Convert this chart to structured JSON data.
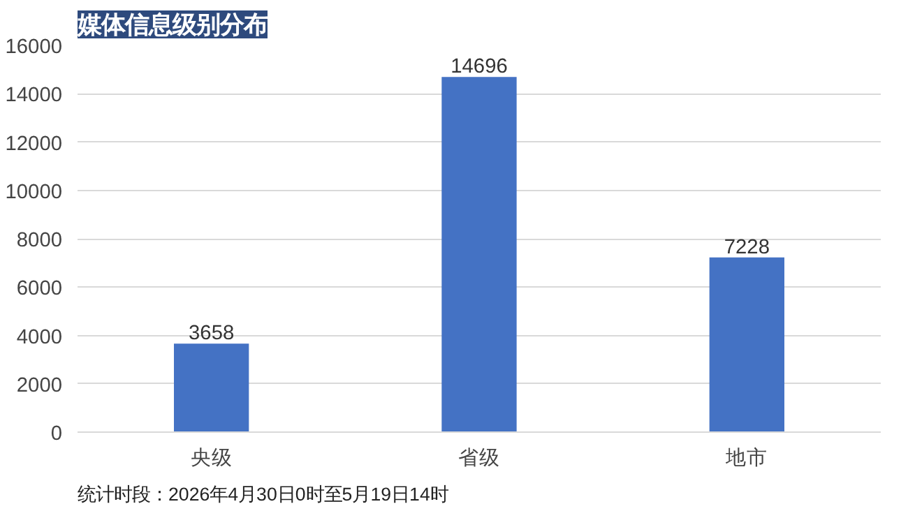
{
  "chart_data": {
    "type": "bar",
    "title": "媒体信息级别分布",
    "categories": [
      "央级",
      "省级",
      "地市"
    ],
    "values": [
      3658,
      14696,
      7228
    ],
    "color": "#4472c4",
    "ylim": [
      0,
      16000
    ],
    "yticks": [
      0,
      2000,
      4000,
      6000,
      8000,
      10000,
      12000,
      14000,
      16000
    ],
    "grid": "y",
    "data_labels": true,
    "annotations": [
      "统计时段：2026年4月30日0时至5月19日14时"
    ]
  }
}
